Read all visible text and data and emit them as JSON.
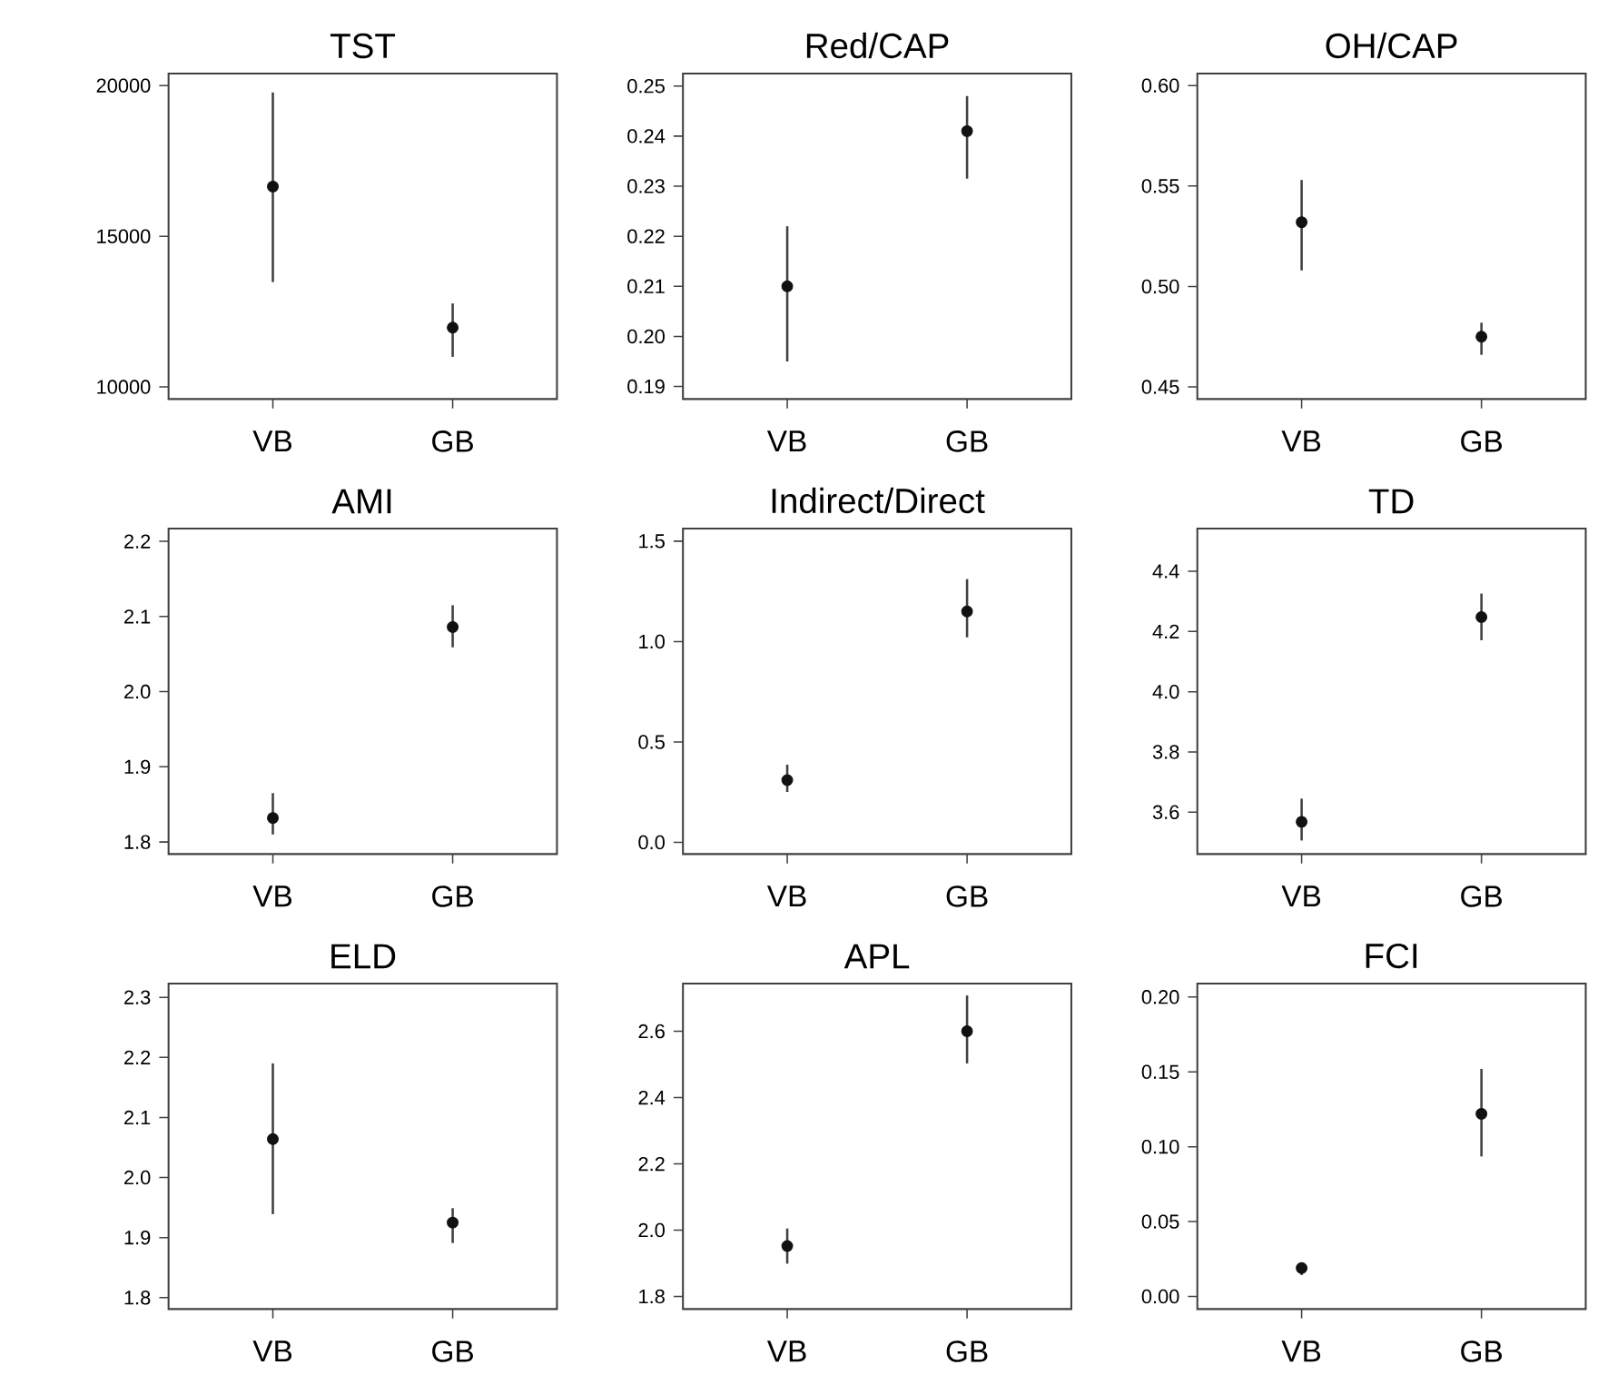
{
  "chart_data": [
    {
      "type": "scatter",
      "title": "TST",
      "categories": [
        "VB",
        "GB"
      ],
      "values": [
        16650,
        11970
      ],
      "errors": [
        [
          13480,
          19770
        ],
        [
          11000,
          12770
        ]
      ],
      "ylim": [
        9600,
        20400
      ],
      "yticks": [
        10000,
        15000,
        20000
      ],
      "marker": "circle",
      "color": "#111111"
    },
    {
      "type": "scatter",
      "title": "Red/CAP",
      "categories": [
        "VB",
        "GB"
      ],
      "values": [
        0.21,
        0.241
      ],
      "errors": [
        [
          0.195,
          0.222
        ],
        [
          0.2315,
          0.248
        ]
      ],
      "ylim": [
        0.1875,
        0.2525
      ],
      "yticks": [
        {
          "value": 0.19,
          "label": "0.19"
        },
        {
          "value": 0.2,
          "label": "0.20"
        },
        {
          "value": 0.21,
          "label": "0.21"
        },
        {
          "value": 0.22,
          "label": "0.22"
        },
        {
          "value": 0.23,
          "label": "0.23"
        },
        {
          "value": 0.24,
          "label": "0.24"
        },
        {
          "value": 0.25,
          "label": "0.25"
        }
      ],
      "marker": "circle",
      "color": "#111111"
    },
    {
      "type": "scatter",
      "title": "OH/CAP",
      "categories": [
        "VB",
        "GB"
      ],
      "values": [
        0.532,
        0.475
      ],
      "errors": [
        [
          0.508,
          0.553
        ],
        [
          0.466,
          0.482
        ]
      ],
      "ylim": [
        0.444,
        0.606
      ],
      "yticks": [
        {
          "value": 0.45,
          "label": "0.45"
        },
        {
          "value": 0.5,
          "label": "0.50"
        },
        {
          "value": 0.55,
          "label": "0.55"
        },
        {
          "value": 0.6,
          "label": "0.60"
        }
      ],
      "marker": "circle",
      "color": "#111111"
    },
    {
      "type": "scatter",
      "title": "AMI",
      "categories": [
        "VB",
        "GB"
      ],
      "values": [
        1.832,
        2.086
      ],
      "errors": [
        [
          1.81,
          1.865
        ],
        [
          2.059,
          2.115
        ]
      ],
      "ylim": [
        1.784,
        2.217
      ],
      "yticks": [
        1.8,
        1.9,
        {
          "value": 2.0,
          "label": "2.0"
        },
        2.1,
        2.2
      ],
      "marker": "circle",
      "color": "#111111"
    },
    {
      "type": "scatter",
      "title": "Indirect/Direct",
      "categories": [
        "VB",
        "GB"
      ],
      "values": [
        0.31,
        1.15
      ],
      "errors": [
        [
          0.251,
          0.387
        ],
        [
          1.021,
          1.311
        ]
      ],
      "ylim": [
        -0.058,
        1.563
      ],
      "yticks": [
        {
          "value": 0,
          "label": "0.0"
        },
        0.5,
        {
          "value": 1.0,
          "label": "1.0"
        },
        1.5
      ],
      "marker": "circle",
      "color": "#111111"
    },
    {
      "type": "scatter",
      "title": "TD",
      "categories": [
        "VB",
        "GB"
      ],
      "values": [
        3.568,
        4.248
      ],
      "errors": [
        [
          3.506,
          3.645
        ],
        [
          4.171,
          4.326
        ]
      ],
      "ylim": [
        3.461,
        4.542
      ],
      "yticks": [
        3.6,
        3.8,
        {
          "value": 4.0,
          "label": "4.0"
        },
        4.2,
        4.4
      ],
      "marker": "circle",
      "color": "#111111"
    },
    {
      "type": "scatter",
      "title": "ELD",
      "categories": [
        "VB",
        "GB"
      ],
      "values": [
        2.064,
        1.925
      ],
      "errors": [
        [
          1.939,
          2.19
        ],
        [
          1.891,
          1.949
        ]
      ],
      "ylim": [
        1.781,
        2.323
      ],
      "yticks": [
        1.8,
        1.9,
        {
          "value": 2.0,
          "label": "2.0"
        },
        2.1,
        2.2,
        2.3
      ],
      "marker": "circle",
      "color": "#111111"
    },
    {
      "type": "scatter",
      "title": "APL",
      "categories": [
        "VB",
        "GB"
      ],
      "values": [
        1.952,
        2.6
      ],
      "errors": [
        [
          1.899,
          2.005
        ],
        [
          2.503,
          2.708
        ]
      ],
      "ylim": [
        1.762,
        2.744
      ],
      "yticks": [
        1.8,
        {
          "value": 2.0,
          "label": "2.0"
        },
        2.2,
        2.4,
        2.6
      ],
      "marker": "circle",
      "color": "#111111"
    },
    {
      "type": "scatter",
      "title": "FCI",
      "categories": [
        "VB",
        "GB"
      ],
      "values": [
        0.019,
        0.122
      ],
      "errors": [
        [
          0.0143,
          0.0227
        ],
        [
          0.0935,
          0.152
        ]
      ],
      "ylim": [
        -0.0084,
        0.209
      ],
      "yticks": [
        {
          "value": 0,
          "label": "0.00"
        },
        0.05,
        {
          "value": 0.1,
          "label": "0.10"
        },
        0.15,
        {
          "value": 0.2,
          "label": "0.20"
        }
      ],
      "marker": "circle",
      "color": "#111111"
    }
  ]
}
